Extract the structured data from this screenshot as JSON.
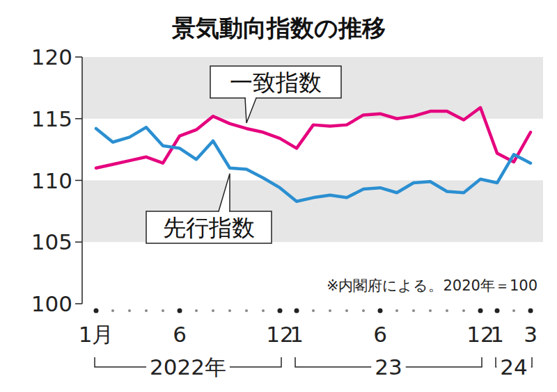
{
  "chart_data": {
    "type": "line",
    "title": "景気動向指数の推移",
    "note": "※内閣府による。2020年＝100",
    "categories": [
      "1月",
      null,
      null,
      null,
      null,
      "6",
      null,
      null,
      null,
      null,
      null,
      "12",
      "1",
      null,
      null,
      null,
      null,
      "6",
      null,
      null,
      null,
      null,
      null,
      "12",
      "1",
      null,
      "3"
    ],
    "year_groups": [
      {
        "label": "2022年",
        "count": 12
      },
      {
        "label": "23",
        "count": 12
      },
      {
        "label": "24",
        "count": 3
      }
    ],
    "series": [
      {
        "name": "一致指数",
        "color": "#e5007e",
        "values": [
          111.0,
          111.3,
          111.6,
          111.9,
          111.4,
          113.6,
          114.1,
          115.2,
          114.6,
          114.2,
          113.9,
          113.4,
          112.6,
          114.5,
          114.4,
          114.5,
          115.3,
          115.4,
          115.0,
          115.2,
          115.6,
          115.6,
          114.9,
          115.9,
          112.2,
          111.5,
          113.9
        ]
      },
      {
        "name": "先行指数",
        "color": "#2b8fd1",
        "values": [
          114.2,
          113.1,
          113.5,
          114.3,
          112.8,
          112.6,
          111.7,
          113.2,
          111.0,
          110.9,
          110.2,
          109.4,
          108.3,
          108.6,
          108.8,
          108.6,
          109.3,
          109.4,
          109.0,
          109.8,
          109.9,
          109.1,
          109.0,
          110.1,
          109.8,
          112.1,
          111.4
        ]
      }
    ],
    "ylim": [
      100,
      120
    ],
    "yticks": [
      100,
      105,
      110,
      115,
      120
    ],
    "grid": true
  }
}
